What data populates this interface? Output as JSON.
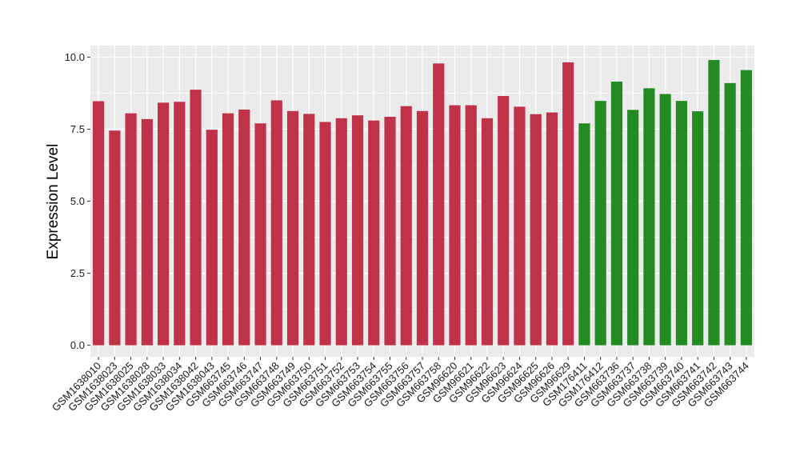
{
  "chart_data": {
    "type": "bar",
    "xlabel": "",
    "ylabel": "Expression Level",
    "ylim": [
      -0.4,
      10.4
    ],
    "yticks": [
      "0.0",
      "2.5",
      "5.0",
      "7.5",
      "10.0"
    ],
    "ytick_values": [
      0,
      2.5,
      5.0,
      7.5,
      10.0
    ],
    "grid": true,
    "colors": {
      "red_group": "#c0314a",
      "green_group": "#238b22",
      "panel": "#ebebeb",
      "grid": "#ffffff"
    },
    "categories": [
      "GSM1638010",
      "GSM1638023",
      "GSM1638025",
      "GSM1638028",
      "GSM1638033",
      "GSM1638034",
      "GSM1638042",
      "GSM1638043",
      "GSM663745",
      "GSM663746",
      "GSM663747",
      "GSM663748",
      "GSM663749",
      "GSM663750",
      "GSM663751",
      "GSM663752",
      "GSM663753",
      "GSM663754",
      "GSM663755",
      "GSM663756",
      "GSM663757",
      "GSM663758",
      "GSM96620",
      "GSM96621",
      "GSM96622",
      "GSM96623",
      "GSM96624",
      "GSM96625",
      "GSM96626",
      "GSM96629",
      "GSM176411",
      "GSM176412",
      "GSM663736",
      "GSM663737",
      "GSM663738",
      "GSM663739",
      "GSM663740",
      "GSM663741",
      "GSM663742",
      "GSM663743",
      "GSM663744"
    ],
    "values": [
      8.47,
      7.45,
      8.05,
      7.85,
      8.42,
      8.45,
      8.87,
      7.48,
      8.05,
      8.18,
      7.7,
      8.5,
      8.13,
      8.03,
      7.75,
      7.88,
      7.98,
      7.8,
      7.93,
      8.3,
      8.13,
      9.78,
      8.33,
      8.33,
      7.88,
      8.65,
      8.28,
      8.02,
      8.08,
      9.82,
      7.7,
      8.48,
      9.15,
      8.17,
      8.92,
      8.72,
      8.48,
      8.12,
      9.9,
      9.1,
      9.55
    ],
    "groups": [
      "red",
      "red",
      "red",
      "red",
      "red",
      "red",
      "red",
      "red",
      "red",
      "red",
      "red",
      "red",
      "red",
      "red",
      "red",
      "red",
      "red",
      "red",
      "red",
      "red",
      "red",
      "red",
      "red",
      "red",
      "red",
      "red",
      "red",
      "red",
      "red",
      "red",
      "green",
      "green",
      "green",
      "green",
      "green",
      "green",
      "green",
      "green",
      "green",
      "green",
      "green"
    ]
  }
}
